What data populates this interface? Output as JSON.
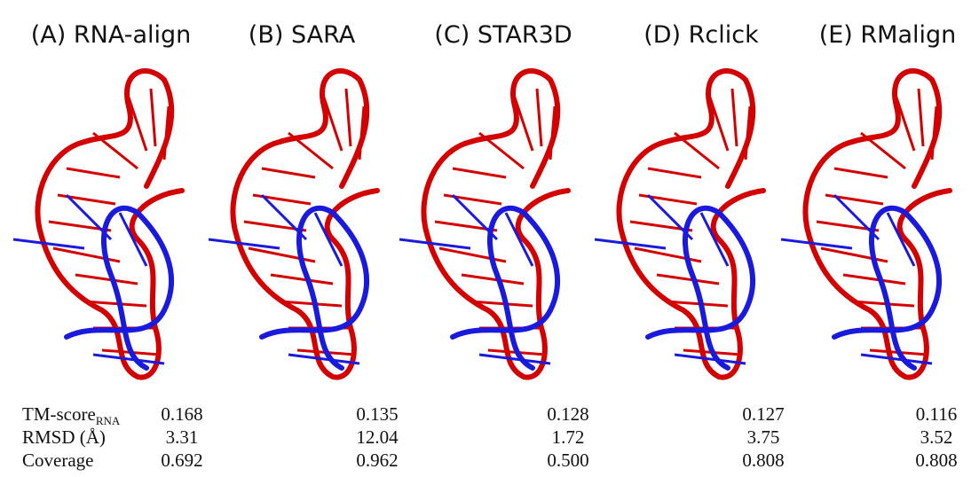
{
  "panels": [
    {
      "label": "(A) RNA-align"
    },
    {
      "label": "(B) SARA"
    },
    {
      "label": "(C) STAR3D"
    },
    {
      "label": "(D) Rclick"
    },
    {
      "label": "(E) RMalign"
    }
  ],
  "table": {
    "rows": [
      {
        "label": "TM-score",
        "label_sub": "RNA",
        "values": [
          "0.168",
          "0.135",
          "0.128",
          "0.127",
          "0.116"
        ]
      },
      {
        "label": "RMSD (Å)",
        "values": [
          "3.31",
          "12.04",
          "1.72",
          "3.75",
          "3.52"
        ]
      },
      {
        "label": "Coverage",
        "values": [
          "0.692",
          "0.962",
          "0.500",
          "0.808",
          "0.808"
        ]
      }
    ]
  }
}
